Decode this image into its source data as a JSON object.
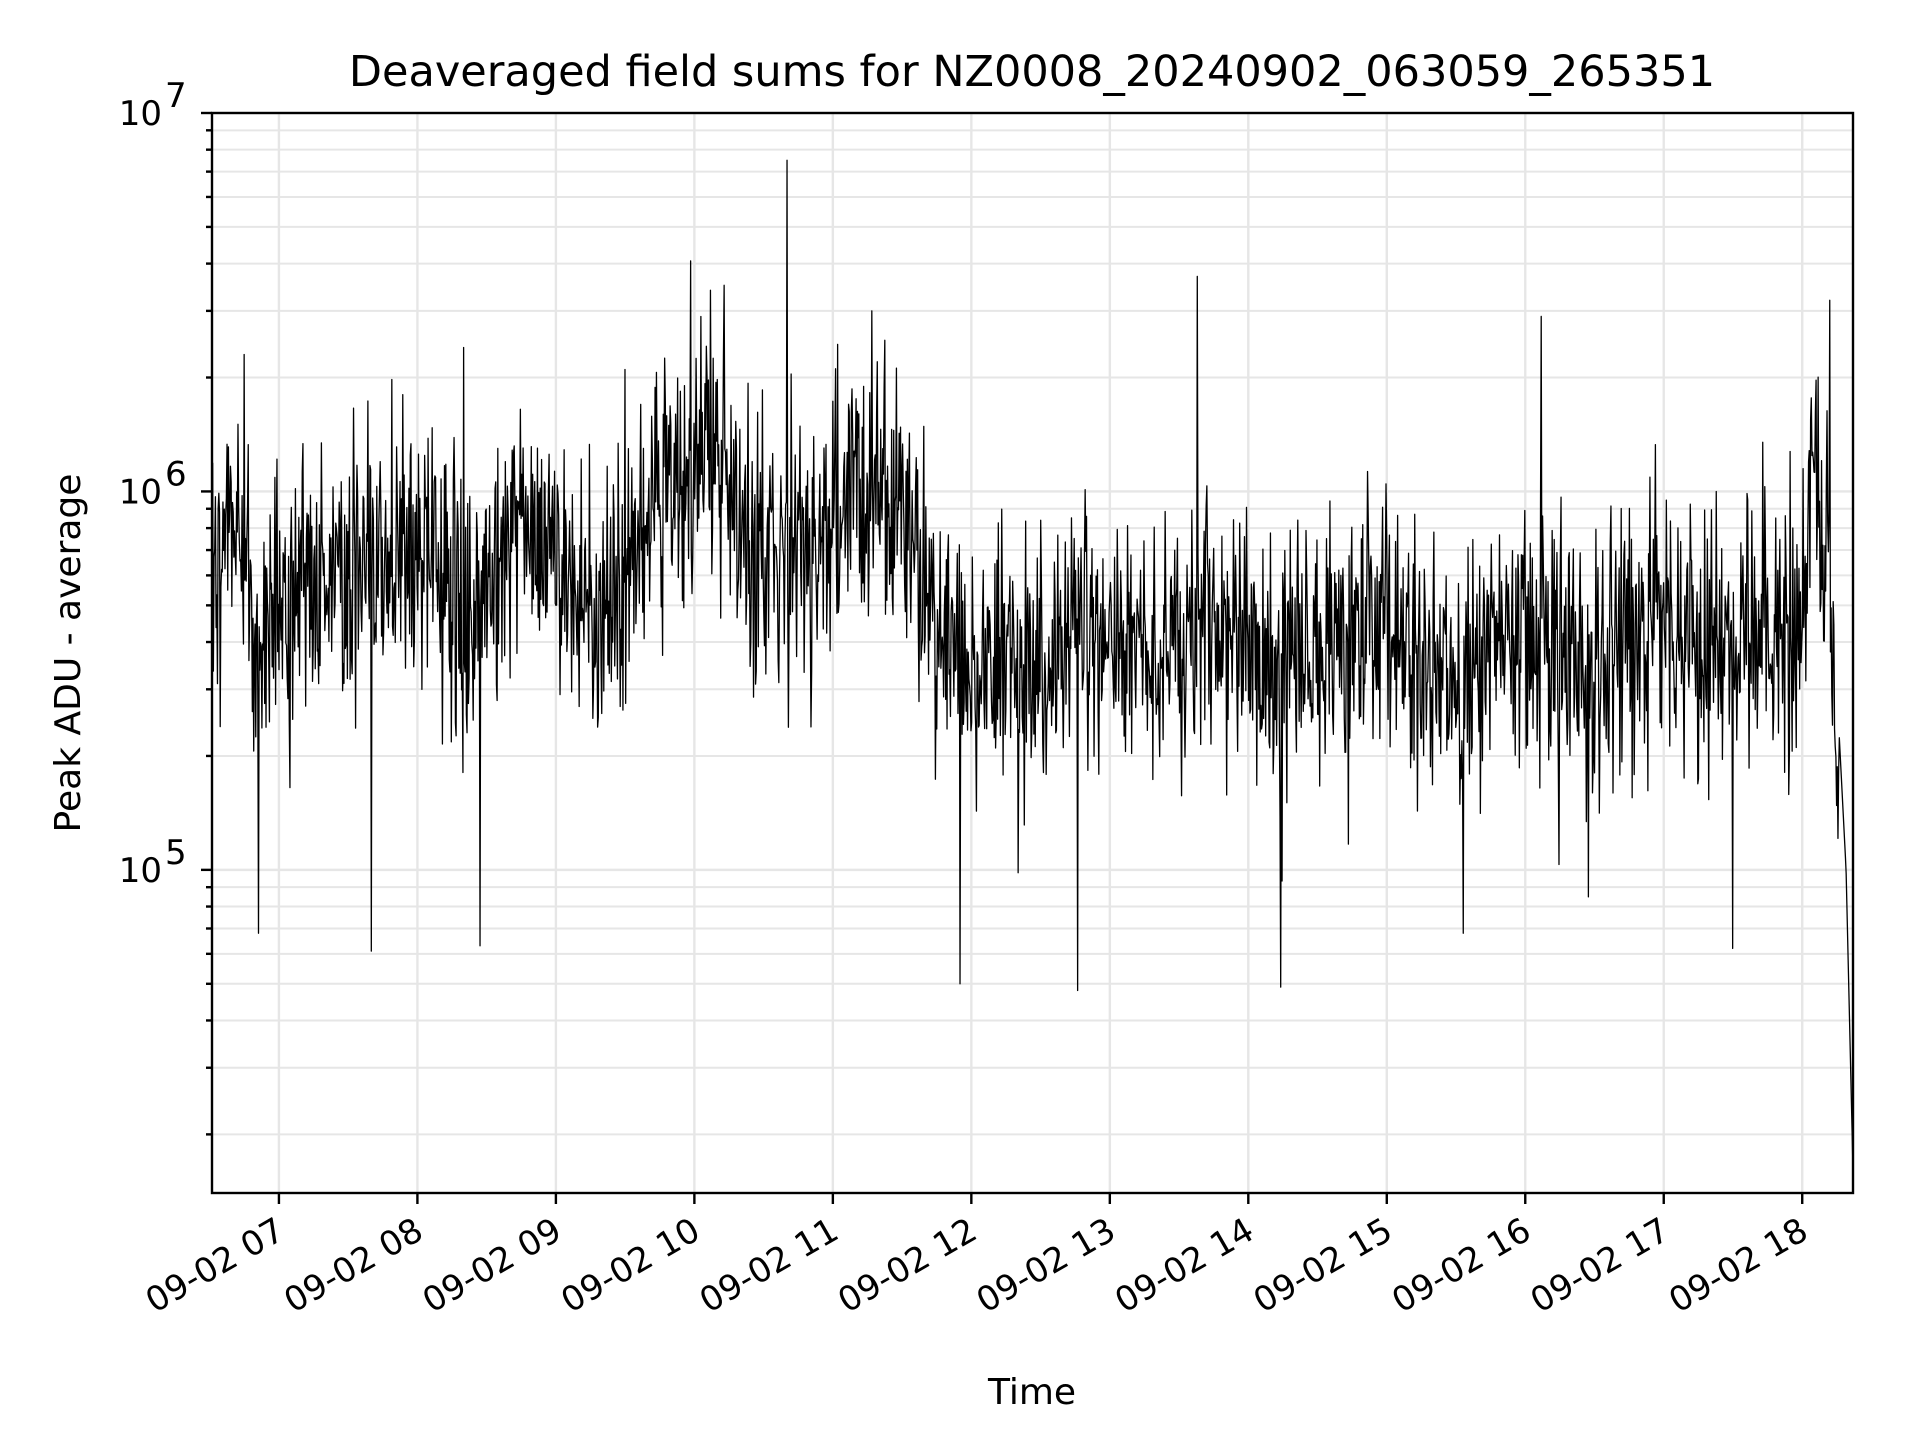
{
  "chart_data": {
    "type": "line",
    "title": "Deaveraged field sums for NZ0008_20240902_063059_265351",
    "xlabel": "Time",
    "ylabel": "Peak ADU - average",
    "yscale": "log",
    "ylim": [
      14000,
      10000000
    ],
    "xlim": [
      "2024-09-02 06:31",
      "2024-09-02 18:22"
    ],
    "grid": true,
    "x_ticks": [
      {
        "value": "2024-09-02 07:00",
        "label": "09-02 07"
      },
      {
        "value": "2024-09-02 08:00",
        "label": "09-02 08"
      },
      {
        "value": "2024-09-02 09:00",
        "label": "09-02 09"
      },
      {
        "value": "2024-09-02 10:00",
        "label": "09-02 10"
      },
      {
        "value": "2024-09-02 11:00",
        "label": "09-02 11"
      },
      {
        "value": "2024-09-02 12:00",
        "label": "09-02 12"
      },
      {
        "value": "2024-09-02 13:00",
        "label": "09-02 13"
      },
      {
        "value": "2024-09-02 14:00",
        "label": "09-02 14"
      },
      {
        "value": "2024-09-02 15:00",
        "label": "09-02 15"
      },
      {
        "value": "2024-09-02 16:00",
        "label": "09-02 16"
      },
      {
        "value": "2024-09-02 17:00",
        "label": "09-02 17"
      },
      {
        "value": "2024-09-02 18:00",
        "label": "09-02 18"
      }
    ],
    "y_ticks": [
      {
        "value": 100000,
        "base": "10",
        "exp": "5"
      },
      {
        "value": 1000000,
        "base": "10",
        "exp": "6"
      },
      {
        "value": 10000000,
        "base": "10",
        "exp": "7"
      }
    ],
    "series": [
      {
        "color": "#000000",
        "points": [
          [
            "2024-09-02 06:31",
            600000
          ],
          [
            "2024-09-02 06:40",
            900000
          ],
          [
            "2024-09-02 06:50",
            420000
          ],
          [
            "2024-09-02 07:00",
            480000
          ],
          [
            "2024-09-02 07:10",
            650000
          ],
          [
            "2024-09-02 07:20",
            520000
          ],
          [
            "2024-09-02 07:30",
            700000
          ],
          [
            "2024-09-02 07:40",
            560000
          ],
          [
            "2024-09-02 07:50",
            720000
          ],
          [
            "2024-09-02 08:00",
            680000
          ],
          [
            "2024-09-02 08:10",
            620000
          ],
          [
            "2024-09-02 08:20",
            450000
          ],
          [
            "2024-09-02 08:30",
            560000
          ],
          [
            "2024-09-02 08:40",
            800000
          ],
          [
            "2024-09-02 08:50",
            720000
          ],
          [
            "2024-09-02 09:00",
            650000
          ],
          [
            "2024-09-02 09:10",
            520000
          ],
          [
            "2024-09-02 09:20",
            400000
          ],
          [
            "2024-09-02 09:30",
            550000
          ],
          [
            "2024-09-02 09:40",
            850000
          ],
          [
            "2024-09-02 09:50",
            1000000
          ],
          [
            "2024-09-02 10:00",
            1100000
          ],
          [
            "2024-09-02 10:10",
            1300000
          ],
          [
            "2024-09-02 10:20",
            800000
          ],
          [
            "2024-09-02 10:30",
            650000
          ],
          [
            "2024-09-02 10:40",
            750000
          ],
          [
            "2024-09-02 10:50",
            700000
          ],
          [
            "2024-09-02 11:00",
            800000
          ],
          [
            "2024-09-02 11:10",
            950000
          ],
          [
            "2024-09-02 11:20",
            1000000
          ],
          [
            "2024-09-02 11:30",
            800000
          ],
          [
            "2024-09-02 11:40",
            500000
          ],
          [
            "2024-09-02 11:50",
            380000
          ],
          [
            "2024-09-02 12:00",
            350000
          ],
          [
            "2024-09-02 12:10",
            320000
          ],
          [
            "2024-09-02 12:20",
            300000
          ],
          [
            "2024-09-02 12:30",
            340000
          ],
          [
            "2024-09-02 12:40",
            380000
          ],
          [
            "2024-09-02 12:50",
            420000
          ],
          [
            "2024-09-02 13:00",
            480000
          ],
          [
            "2024-09-02 13:10",
            430000
          ],
          [
            "2024-09-02 13:20",
            380000
          ],
          [
            "2024-09-02 13:30",
            420000
          ],
          [
            "2024-09-02 13:40",
            450000
          ],
          [
            "2024-09-02 13:50",
            400000
          ],
          [
            "2024-09-02 14:00",
            380000
          ],
          [
            "2024-09-02 14:10",
            330000
          ],
          [
            "2024-09-02 14:20",
            300000
          ],
          [
            "2024-09-02 14:30",
            380000
          ],
          [
            "2024-09-02 14:40",
            420000
          ],
          [
            "2024-09-02 14:50",
            450000
          ],
          [
            "2024-09-02 15:00",
            420000
          ],
          [
            "2024-09-02 15:10",
            400000
          ],
          [
            "2024-09-02 15:20",
            380000
          ],
          [
            "2024-09-02 15:30",
            300000
          ],
          [
            "2024-09-02 15:40",
            320000
          ],
          [
            "2024-09-02 15:50",
            420000
          ],
          [
            "2024-09-02 16:00",
            400000
          ],
          [
            "2024-09-02 16:10",
            350000
          ],
          [
            "2024-09-02 16:20",
            380000
          ],
          [
            "2024-09-02 16:30",
            350000
          ],
          [
            "2024-09-02 16:40",
            420000
          ],
          [
            "2024-09-02 16:50",
            460000
          ],
          [
            "2024-09-02 17:00",
            480000
          ],
          [
            "2024-09-02 17:10",
            420000
          ],
          [
            "2024-09-02 17:20",
            400000
          ],
          [
            "2024-09-02 17:30",
            380000
          ],
          [
            "2024-09-02 17:40",
            420000
          ],
          [
            "2024-09-02 17:50",
            450000
          ],
          [
            "2024-09-02 18:00",
            500000
          ],
          [
            "2024-09-02 18:05",
            1200000
          ],
          [
            "2024-09-02 18:10",
            700000
          ],
          [
            "2024-09-02 18:15",
            300000
          ],
          [
            "2024-09-02 18:19",
            100000
          ],
          [
            "2024-09-02 18:22",
            16000
          ]
        ],
        "spikes": [
          [
            "2024-09-02 06:45",
            2300000
          ],
          [
            "2024-09-02 07:40",
            2000000
          ],
          [
            "2024-09-02 08:20",
            2400000
          ],
          [
            "2024-09-02 09:30",
            2100000
          ],
          [
            "2024-09-02 10:07",
            3400000
          ],
          [
            "2024-09-02 10:40",
            7500000
          ],
          [
            "2024-09-02 11:17",
            3000000
          ],
          [
            "2024-09-02 13:38",
            3700000
          ],
          [
            "2024-09-02 16:07",
            2900000
          ],
          [
            "2024-09-02 18:12",
            3200000
          ]
        ],
        "dips": [
          [
            "2024-09-02 06:51",
            68000
          ],
          [
            "2024-09-02 07:40",
            61000
          ],
          [
            "2024-09-02 08:27",
            63000
          ],
          [
            "2024-09-02 11:55",
            50000
          ],
          [
            "2024-09-02 12:46",
            48000
          ],
          [
            "2024-09-02 14:14",
            49000
          ],
          [
            "2024-09-02 15:33",
            68000
          ],
          [
            "2024-09-02 17:30",
            62000
          ]
        ]
      }
    ]
  }
}
